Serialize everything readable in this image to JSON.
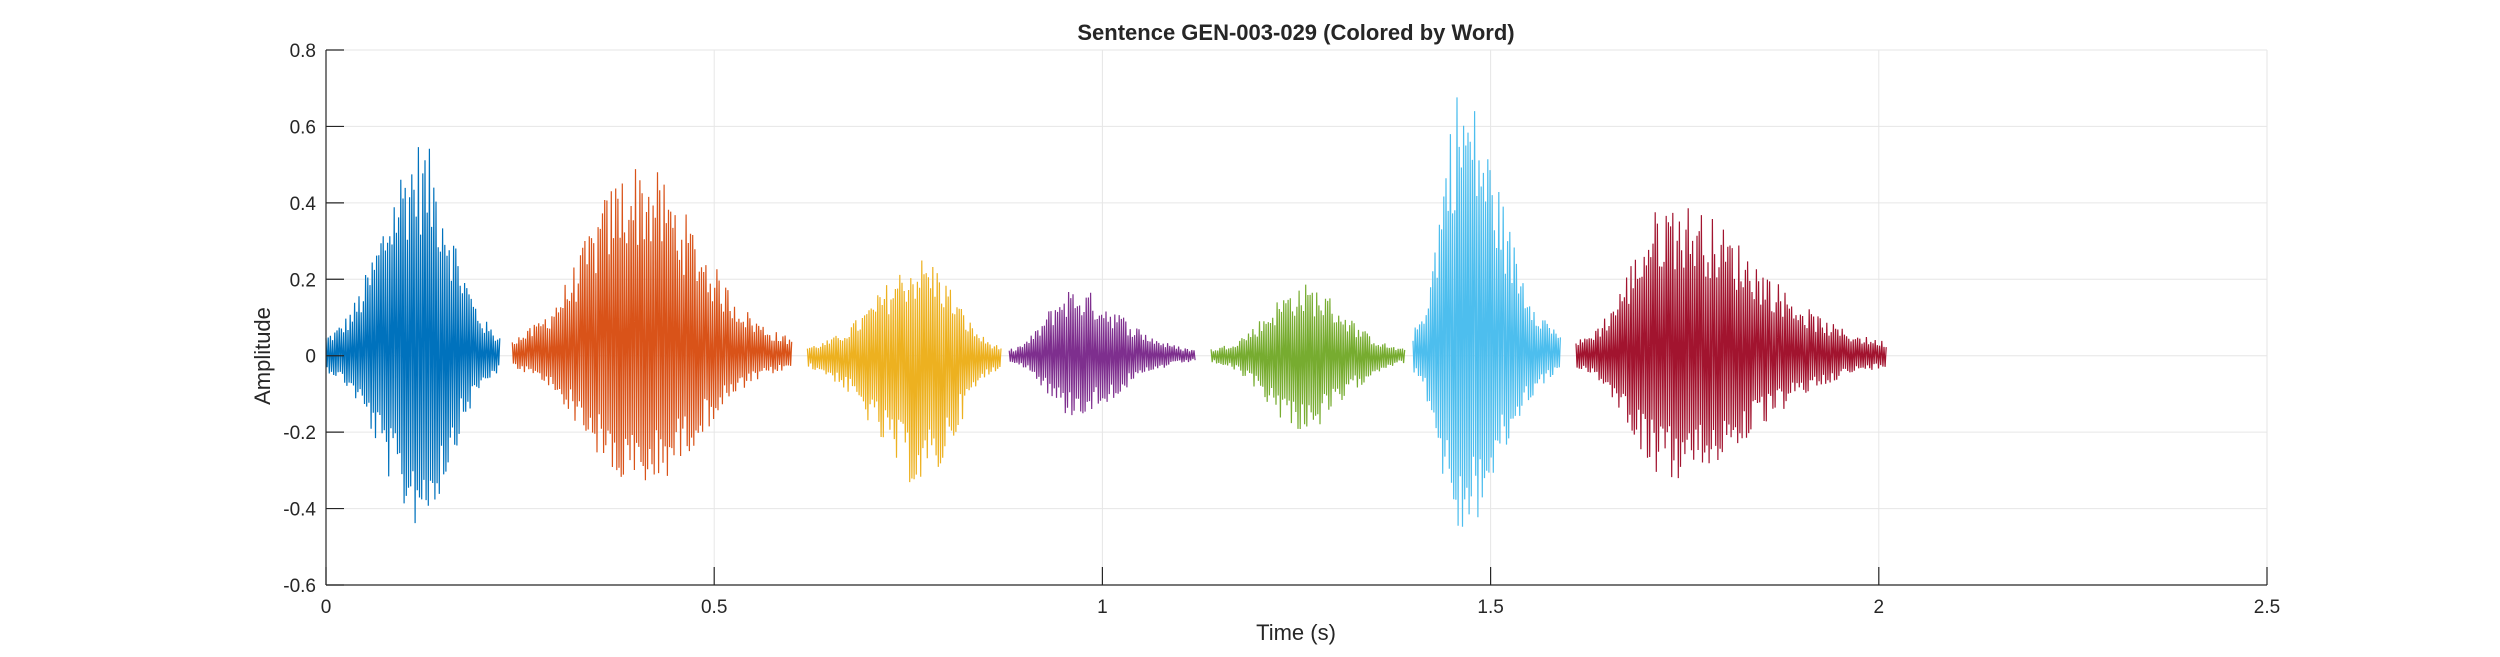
{
  "chart_data": {
    "type": "line",
    "title": "Sentence GEN-003-029 (Colored by Word)",
    "xlabel": "Time (s)",
    "ylabel": "Amplitude",
    "xlim": [
      0,
      2.5
    ],
    "ylim": [
      -0.6,
      0.8
    ],
    "x_ticks": [
      "0",
      "0.5",
      "1",
      "1.5",
      "2",
      "2.5"
    ],
    "y_ticks": [
      "-0.6",
      "-0.4",
      "-0.2",
      "0",
      "0.2",
      "0.4",
      "0.6",
      "0.8"
    ],
    "grid": true,
    "series": [
      {
        "color": "#0072BD",
        "t_start": 0.0,
        "t_end": 0.225,
        "max": 0.57,
        "min": -0.45,
        "peak_t": 0.12
      },
      {
        "color": "#D95319",
        "t_start": 0.24,
        "t_end": 0.6,
        "max": 0.51,
        "min": -0.36,
        "peak_t": 0.4
      },
      {
        "color": "#EDB120",
        "t_start": 0.62,
        "t_end": 0.87,
        "max": 0.26,
        "min": -0.35,
        "peak_t": 0.77
      },
      {
        "color": "#7E2F8E",
        "t_start": 0.88,
        "t_end": 1.12,
        "max": 0.18,
        "min": -0.16,
        "peak_t": 0.96
      },
      {
        "color": "#77AC30",
        "t_start": 1.14,
        "t_end": 1.39,
        "max": 0.19,
        "min": -0.2,
        "peak_t": 1.26
      },
      {
        "color": "#4DBEEE",
        "t_start": 1.4,
        "t_end": 1.59,
        "max": 0.71,
        "min": -0.48,
        "peak_t": 1.46
      },
      {
        "color": "#A2142F",
        "t_start": 1.61,
        "t_end": 2.01,
        "max": 0.41,
        "min": -0.33,
        "peak_t": 1.73
      }
    ]
  }
}
